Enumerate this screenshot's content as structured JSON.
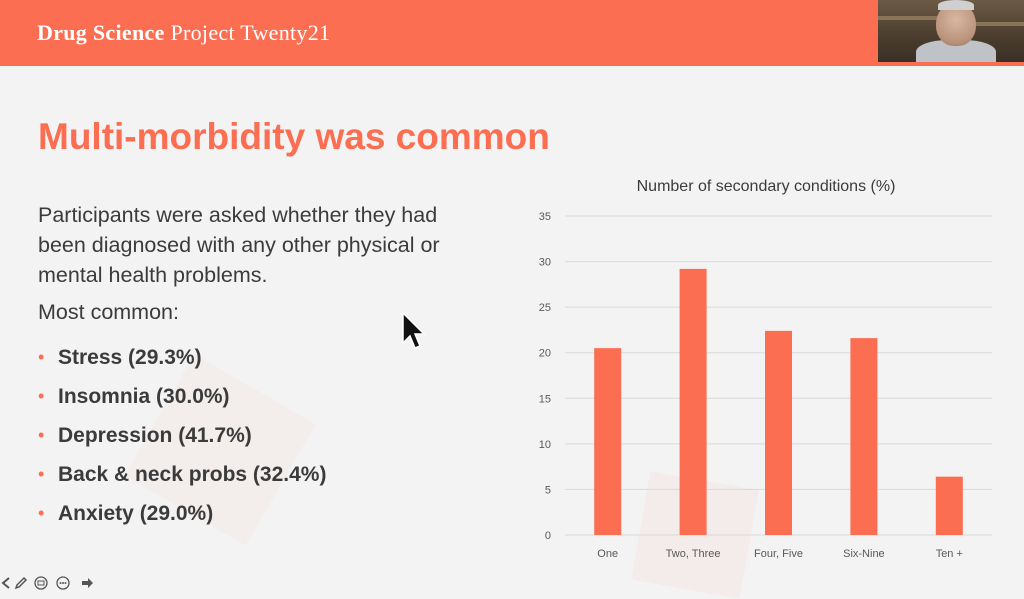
{
  "header": {
    "brand_bold": "Drug Science",
    "brand_rest": " Project Twenty21",
    "colors": {
      "header_bg": "#fb6e52",
      "accent": "#fb6e52"
    }
  },
  "slide": {
    "title": "Multi-morbidity was common",
    "intro": "Participants were asked whether they had been diagnosed with any other physical or mental health problems.",
    "most_common_label": "Most common:",
    "bullets": [
      "Stress (29.3%)",
      "Insomnia (30.0%)",
      "Depression (41.7%)",
      "Back & neck probs (32.4%)",
      "Anxiety (29.0%)"
    ]
  },
  "webcam": {
    "icon": "participant-video-feed"
  },
  "cursor": {
    "icon": "mouse-pointer-icon"
  },
  "toolbar": {
    "icons": [
      "arrow-left-icon",
      "pen-icon",
      "slides-icon",
      "more-icon",
      "arrow-right-icon"
    ]
  },
  "chart_data": {
    "type": "bar",
    "title": "Number of secondary conditions (%)",
    "categories": [
      "One",
      "Two, Three",
      "Four, Five",
      "Six-Nine",
      "Ten +"
    ],
    "values": [
      20.5,
      29.2,
      22.4,
      21.6,
      6.4
    ],
    "ylim": [
      0,
      35
    ],
    "yticks": [
      0,
      5,
      10,
      15,
      20,
      25,
      30,
      35
    ],
    "grid": true,
    "legend": "none",
    "bar_color": "#fb6e52"
  }
}
